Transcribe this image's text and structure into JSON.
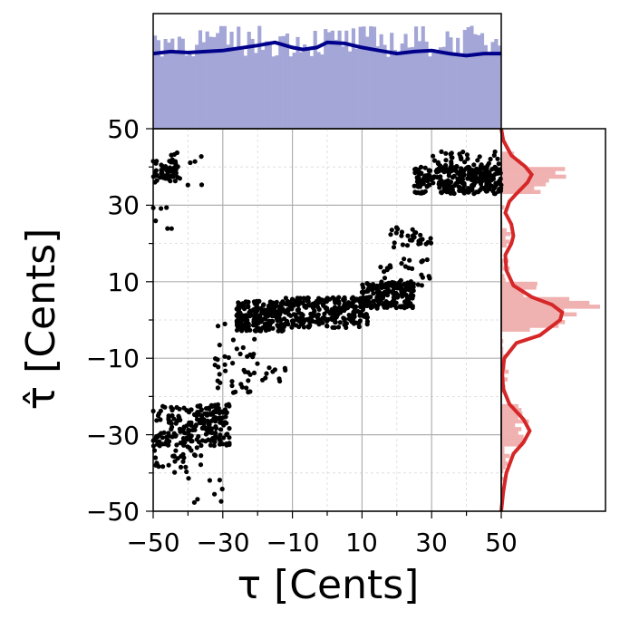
{
  "chart_data": {
    "type": "scatter",
    "title": "",
    "xlabel": "τ [Cents]",
    "ylabel": "τ̂ [Cents]",
    "xlim": [
      -50,
      50
    ],
    "ylim": [
      -50,
      50
    ],
    "xticks": [
      "−50",
      "−30",
      "−10",
      "10",
      "30",
      "50"
    ],
    "yticks": [
      "−50",
      "−30",
      "−10",
      "10",
      "30",
      "50"
    ],
    "grid": true,
    "colors": {
      "points": "#000000",
      "top_hist": "#a3a6d6",
      "top_kde": "#00008b",
      "right_hist": "#f0b1b1",
      "right_kde": "#d62728",
      "grid": "#b0b0b0"
    },
    "series": [
      {
        "clusters": [
          {
            "x": [
              -50,
              -43
            ],
            "y": [
              36,
              42
            ],
            "n": 55
          },
          {
            "x": [
              -50,
              -44
            ],
            "y": [
              22,
              30
            ],
            "n": 6
          },
          {
            "x": [
              -45,
              -35
            ],
            "y": [
              35,
              44
            ],
            "n": 12
          },
          {
            "x": [
              -50,
              -28
            ],
            "y": [
              -33,
              -22
            ],
            "n": 210
          },
          {
            "x": [
              -50,
              -36
            ],
            "y": [
              -40,
              -33
            ],
            "n": 30
          },
          {
            "x": [
              -40,
              -30
            ],
            "y": [
              -48,
              -40
            ],
            "n": 8
          },
          {
            "x": [
              -33,
              -20
            ],
            "y": [
              -19,
              -5
            ],
            "n": 35
          },
          {
            "x": [
              -26,
              -12
            ],
            "y": [
              -3,
              5
            ],
            "n": 220
          },
          {
            "x": [
              -12,
              12
            ],
            "y": [
              -2,
              6
            ],
            "n": 260
          },
          {
            "x": [
              -32,
              -23
            ],
            "y": [
              -3,
              0
            ],
            "n": 8
          },
          {
            "x": [
              -24,
              -12
            ],
            "y": [
              -16,
              -12
            ],
            "n": 14
          },
          {
            "x": [
              10,
              25
            ],
            "y": [
              3,
              10
            ],
            "n": 180
          },
          {
            "x": [
              15,
              30
            ],
            "y": [
              8,
              16
            ],
            "n": 35
          },
          {
            "x": [
              18,
              30
            ],
            "y": [
              19,
              25
            ],
            "n": 30
          },
          {
            "x": [
              25,
              50
            ],
            "y": [
              33,
              40
            ],
            "n": 260
          },
          {
            "x": [
              30,
              50
            ],
            "y": [
              38,
              44
            ],
            "n": 60
          }
        ]
      }
    ],
    "top_marginal": {
      "type": "histogram",
      "bins": 100,
      "kde": [
        [
          -50,
          0.74
        ],
        [
          -45,
          0.76
        ],
        [
          -40,
          0.75
        ],
        [
          -30,
          0.77
        ],
        [
          -20,
          0.82
        ],
        [
          -15,
          0.85
        ],
        [
          -10,
          0.8
        ],
        [
          -7,
          0.78
        ],
        [
          -3,
          0.8
        ],
        [
          0,
          0.85
        ],
        [
          5,
          0.84
        ],
        [
          10,
          0.8
        ],
        [
          15,
          0.77
        ],
        [
          20,
          0.74
        ],
        [
          25,
          0.76
        ],
        [
          30,
          0.77
        ],
        [
          35,
          0.74
        ],
        [
          40,
          0.72
        ],
        [
          45,
          0.74
        ],
        [
          50,
          0.74
        ]
      ]
    },
    "right_marginal": {
      "type": "histogram",
      "bins": 100,
      "kde": [
        [
          -50,
          0.0
        ],
        [
          -45,
          0.02
        ],
        [
          -40,
          0.05
        ],
        [
          -35,
          0.12
        ],
        [
          -32,
          0.22
        ],
        [
          -29,
          0.28
        ],
        [
          -26,
          0.22
        ],
        [
          -22,
          0.08
        ],
        [
          -18,
          0.02
        ],
        [
          -14,
          0.01
        ],
        [
          -10,
          0.03
        ],
        [
          -6,
          0.15
        ],
        [
          -4,
          0.38
        ],
        [
          0,
          0.58
        ],
        [
          2,
          0.6
        ],
        [
          4,
          0.5
        ],
        [
          6,
          0.3
        ],
        [
          9,
          0.12
        ],
        [
          13,
          0.05
        ],
        [
          17,
          0.04
        ],
        [
          20,
          0.1
        ],
        [
          22,
          0.12
        ],
        [
          25,
          0.1
        ],
        [
          28,
          0.04
        ],
        [
          31,
          0.08
        ],
        [
          33,
          0.15
        ],
        [
          36,
          0.26
        ],
        [
          38,
          0.3
        ],
        [
          40,
          0.24
        ],
        [
          43,
          0.1
        ],
        [
          47,
          0.02
        ],
        [
          50,
          0.0
        ]
      ]
    }
  }
}
